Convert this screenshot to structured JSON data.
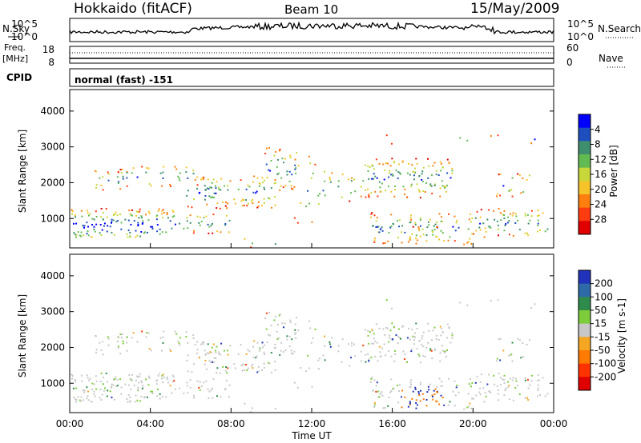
{
  "header": {
    "station": "Hokkaido (fitACF)",
    "beam": "Beam 10",
    "date": "15/May/2009"
  },
  "top_panel": {
    "nsky_label": "N.Sky",
    "nsearch_label": "N.Search",
    "freq_label_1": "Freq.",
    "freq_label_2": "[MHz]",
    "nave_label": "Nave",
    "cpid_label": "CPID",
    "cpid_value": "normal (fast) -151",
    "noise_ticks": [
      "10^5",
      "10^0"
    ],
    "freq_ticks": [
      "18",
      "8"
    ],
    "nave_ticks": [
      "60",
      "0"
    ]
  },
  "chart_data": [
    {
      "type": "heatmap",
      "title": "",
      "xlabel": "Time UT",
      "ylabel": "Slant Range [km]",
      "xticks": [
        "00:00",
        "04:00",
        "08:00",
        "12:00",
        "16:00",
        "20:00",
        "00:00"
      ],
      "yticks": [
        "1000",
        "2000",
        "3000",
        "4000"
      ],
      "ylim": [
        180,
        4600
      ],
      "colorbar": {
        "label": "Power [dB]",
        "ticks": [
          "4",
          "8",
          "12",
          "16",
          "20",
          "24",
          "28"
        ],
        "colors": [
          "#0000ff",
          "#1f4fbf",
          "#3f8f6f",
          "#62bb52",
          "#c8d83a",
          "#f5c42a",
          "#ff7f0e",
          "#ff3b10",
          "#e00000"
        ]
      }
    },
    {
      "type": "heatmap",
      "title": "",
      "xlabel": "Time UT",
      "ylabel": "Slant Range [km]",
      "xticks": [
        "00:00",
        "04:00",
        "08:00",
        "12:00",
        "16:00",
        "20:00",
        "00:00"
      ],
      "yticks": [
        "1000",
        "2000",
        "3000",
        "4000"
      ],
      "ylim": [
        180,
        4600
      ],
      "colorbar": {
        "label": "Velocity [m s-1]",
        "ticks": [
          "200",
          "100",
          "50",
          "15",
          "-15",
          "-50",
          "-100",
          "-200"
        ],
        "colors": [
          "#2233bb",
          "#2f6aa8",
          "#2e8b4b",
          "#7ccc3c",
          "#c8c8c8",
          "#f5a623",
          "#ff7a00",
          "#ff3300",
          "#e00000"
        ]
      }
    }
  ]
}
